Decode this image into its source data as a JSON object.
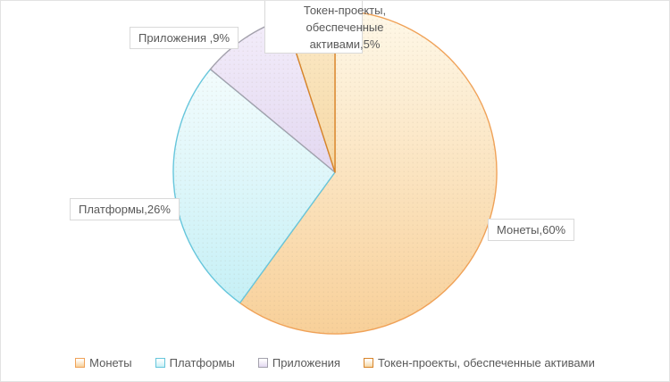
{
  "chart_data": {
    "type": "pie",
    "title": "",
    "categories": [
      "Монеты",
      "Платформы",
      "Приложения",
      "Токен-проекты, обеспеченные активами"
    ],
    "values": [
      60,
      26,
      9,
      5
    ],
    "unit": "%",
    "start_angle_deg": 0,
    "direction": "clockwise",
    "legend_position": "bottom",
    "data_labels": [
      "Монеты,60%",
      "Платформы,26%",
      "Приложения ,9%",
      "Токен-проекты,\nобеспеченные\nактивами,5%"
    ],
    "colors": [
      {
        "fill_start": "#fef8e8",
        "fill_end": "#f8d099",
        "border": "#f0a258"
      },
      {
        "fill_start": "#f3fcfd",
        "fill_end": "#c6f0f6",
        "border": "#66c6dc"
      },
      {
        "fill_start": "#f3edfa",
        "fill_end": "#e3d8f1",
        "border": "#a3a1ac"
      },
      {
        "fill_start": "#fbeac9",
        "fill_end": "#f6d8a4",
        "border": "#d88429"
      }
    ]
  },
  "labels": {
    "moneti": "Монеты,60%",
    "platformy": "Платформы,26%",
    "prilozheniya": "Приложения ,9%",
    "token": "Токен-проекты,\nобеспеченные\nактивами,5%"
  },
  "legend": {
    "items": [
      {
        "label": "Монеты"
      },
      {
        "label": "Платформы"
      },
      {
        "label": "Приложения"
      },
      {
        "label": "Токен-проекты, обеспеченные активами"
      }
    ]
  }
}
